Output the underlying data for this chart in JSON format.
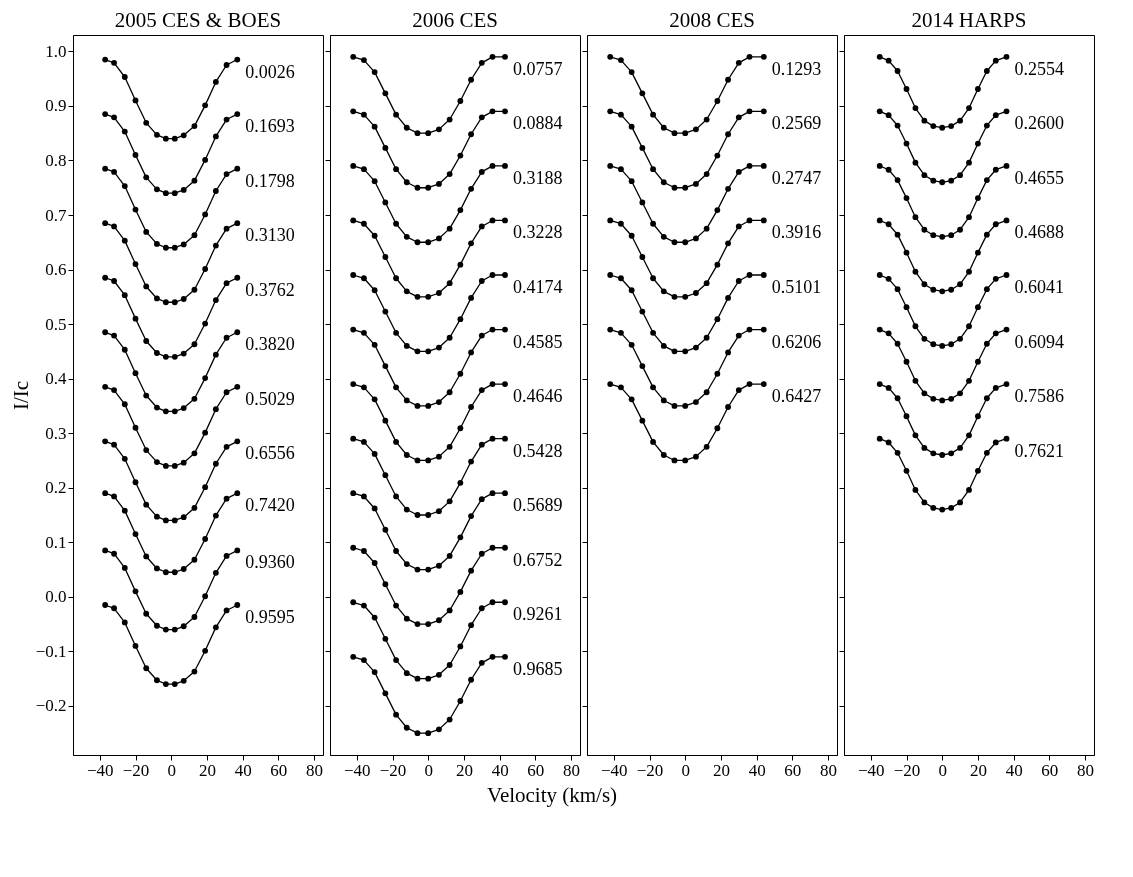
{
  "chart_data": [
    {
      "type": "line",
      "title": "2005 CES & BOES",
      "ylabel": "I/Ic",
      "xlim": [
        -55,
        85
      ],
      "ylim": [
        -0.29,
        1.03
      ],
      "xticks": [
        -40,
        -20,
        0,
        20,
        40,
        60,
        80
      ],
      "yticks": [
        -0.2,
        -0.1,
        {
          "value": 0,
          "label": "0.0"
        },
        0.1,
        0.2,
        0.3,
        0.4,
        0.5,
        0.6,
        0.7,
        0.8,
        0.9,
        {
          "value": 1,
          "label": "1.0"
        }
      ],
      "marker": "circle",
      "line_style": "solid",
      "x": [
        -37,
        -32,
        -26,
        -20,
        -14,
        -8,
        -3,
        2,
        7,
        13,
        19,
        25,
        31,
        37
      ],
      "series": [
        {
          "name": "0.0026",
          "color": "#000000",
          "values": [
            0.985,
            0.979,
            0.953,
            0.91,
            0.869,
            0.847,
            0.84,
            0.84,
            0.846,
            0.863,
            0.901,
            0.944,
            0.975,
            0.985
          ]
        },
        {
          "name": "0.1693",
          "color": "#000000",
          "values": [
            0.885,
            0.879,
            0.853,
            0.81,
            0.769,
            0.747,
            0.74,
            0.74,
            0.746,
            0.763,
            0.801,
            0.844,
            0.875,
            0.885
          ]
        },
        {
          "name": "0.1798",
          "color": "#000000",
          "values": [
            0.785,
            0.779,
            0.753,
            0.71,
            0.669,
            0.647,
            0.64,
            0.64,
            0.646,
            0.663,
            0.701,
            0.744,
            0.775,
            0.785
          ]
        },
        {
          "name": "0.3130",
          "color": "#000000",
          "values": [
            0.685,
            0.679,
            0.653,
            0.61,
            0.569,
            0.547,
            0.54,
            0.54,
            0.546,
            0.563,
            0.601,
            0.644,
            0.675,
            0.685
          ]
        },
        {
          "name": "0.3762",
          "color": "#000000",
          "values": [
            0.585,
            0.579,
            0.553,
            0.51,
            0.469,
            0.447,
            0.44,
            0.44,
            0.446,
            0.463,
            0.501,
            0.544,
            0.575,
            0.585
          ]
        },
        {
          "name": "0.3820",
          "color": "#000000",
          "values": [
            0.485,
            0.479,
            0.453,
            0.41,
            0.369,
            0.347,
            0.34,
            0.34,
            0.346,
            0.363,
            0.401,
            0.444,
            0.475,
            0.485
          ]
        },
        {
          "name": "0.5029",
          "color": "#000000",
          "values": [
            0.385,
            0.379,
            0.353,
            0.31,
            0.269,
            0.247,
            0.24,
            0.24,
            0.246,
            0.263,
            0.301,
            0.344,
            0.375,
            0.385
          ]
        },
        {
          "name": "0.6556",
          "color": "#000000",
          "values": [
            0.285,
            0.279,
            0.253,
            0.21,
            0.169,
            0.147,
            0.14,
            0.14,
            0.146,
            0.163,
            0.201,
            0.244,
            0.275,
            0.285
          ]
        },
        {
          "name": "0.7420",
          "color": "#000000",
          "values": [
            0.19,
            0.184,
            0.158,
            0.115,
            0.074,
            0.052,
            0.045,
            0.045,
            0.051,
            0.068,
            0.106,
            0.149,
            0.18,
            0.19
          ]
        },
        {
          "name": "0.9360",
          "color": "#000000",
          "values": [
            0.085,
            0.079,
            0.053,
            0.01,
            -0.031,
            -0.053,
            -0.06,
            -0.06,
            -0.054,
            -0.037,
            0.001,
            0.044,
            0.075,
            0.085
          ]
        },
        {
          "name": "0.9595",
          "color": "#000000",
          "values": [
            -0.015,
            -0.021,
            -0.047,
            -0.09,
            -0.131,
            -0.153,
            -0.16,
            -0.16,
            -0.154,
            -0.137,
            -0.099,
            -0.056,
            -0.025,
            -0.015
          ]
        }
      ]
    },
    {
      "type": "line",
      "title": "2006 CES",
      "xlabel": "Velocity (km/s)",
      "tick_labels": "x",
      "xlim": [
        -55,
        85
      ],
      "ylim": [
        -0.29,
        1.03
      ],
      "xticks": [
        -40,
        -20,
        0,
        20,
        40,
        60,
        80
      ],
      "yticks": [
        -0.2,
        -0.1,
        0.0,
        0.1,
        0.2,
        0.3,
        0.4,
        0.5,
        0.6,
        0.7,
        0.8,
        0.9,
        1.0
      ],
      "marker": "circle",
      "line_style": "solid",
      "x": [
        -42,
        -36,
        -30,
        -24,
        -18,
        -12,
        -6,
        0,
        6,
        12,
        18,
        24,
        30,
        36,
        43
      ],
      "series": [
        {
          "name": "0.0757",
          "color": "#000000",
          "values": [
            0.99,
            0.984,
            0.962,
            0.923,
            0.884,
            0.86,
            0.85,
            0.85,
            0.857,
            0.875,
            0.909,
            0.948,
            0.979,
            0.99,
            0.99
          ]
        },
        {
          "name": "0.0884",
          "color": "#000000",
          "values": [
            0.89,
            0.884,
            0.862,
            0.823,
            0.784,
            0.76,
            0.75,
            0.75,
            0.757,
            0.775,
            0.809,
            0.848,
            0.879,
            0.89,
            0.89
          ]
        },
        {
          "name": "0.3188",
          "color": "#000000",
          "values": [
            0.79,
            0.784,
            0.762,
            0.723,
            0.684,
            0.66,
            0.65,
            0.65,
            0.657,
            0.675,
            0.709,
            0.748,
            0.779,
            0.79,
            0.79
          ]
        },
        {
          "name": "0.3228",
          "color": "#000000",
          "values": [
            0.69,
            0.684,
            0.662,
            0.623,
            0.584,
            0.56,
            0.55,
            0.55,
            0.557,
            0.575,
            0.609,
            0.648,
            0.679,
            0.69,
            0.69
          ]
        },
        {
          "name": "0.4174",
          "color": "#000000",
          "values": [
            0.59,
            0.584,
            0.562,
            0.523,
            0.484,
            0.46,
            0.45,
            0.45,
            0.457,
            0.475,
            0.509,
            0.548,
            0.579,
            0.59,
            0.59
          ]
        },
        {
          "name": "0.4585",
          "color": "#000000",
          "values": [
            0.49,
            0.484,
            0.462,
            0.423,
            0.384,
            0.36,
            0.35,
            0.35,
            0.357,
            0.375,
            0.409,
            0.448,
            0.479,
            0.49,
            0.49
          ]
        },
        {
          "name": "0.4646",
          "color": "#000000",
          "values": [
            0.39,
            0.384,
            0.362,
            0.323,
            0.284,
            0.26,
            0.25,
            0.25,
            0.257,
            0.275,
            0.309,
            0.348,
            0.379,
            0.39,
            0.39
          ]
        },
        {
          "name": "0.5428",
          "color": "#000000",
          "values": [
            0.29,
            0.284,
            0.262,
            0.223,
            0.184,
            0.16,
            0.15,
            0.15,
            0.157,
            0.175,
            0.209,
            0.248,
            0.279,
            0.29,
            0.29
          ]
        },
        {
          "name": "0.5689",
          "color": "#000000",
          "values": [
            0.19,
            0.184,
            0.162,
            0.123,
            0.084,
            0.06,
            0.05,
            0.05,
            0.057,
            0.075,
            0.109,
            0.148,
            0.179,
            0.19,
            0.19
          ]
        },
        {
          "name": "0.6752",
          "color": "#000000",
          "values": [
            0.09,
            0.084,
            0.062,
            0.023,
            -0.016,
            -0.04,
            -0.05,
            -0.05,
            -0.043,
            -0.025,
            0.009,
            0.048,
            0.079,
            0.09,
            0.09
          ]
        },
        {
          "name": "0.9261",
          "color": "#000000",
          "values": [
            -0.01,
            -0.016,
            -0.038,
            -0.077,
            -0.116,
            -0.14,
            -0.15,
            -0.15,
            -0.143,
            -0.125,
            -0.091,
            -0.052,
            -0.021,
            -0.01,
            -0.01
          ]
        },
        {
          "name": "0.9685",
          "color": "#000000",
          "values": [
            -0.11,
            -0.116,
            -0.138,
            -0.177,
            -0.216,
            -0.24,
            -0.25,
            -0.25,
            -0.243,
            -0.225,
            -0.191,
            -0.152,
            -0.121,
            -0.11,
            -0.11
          ]
        }
      ]
    },
    {
      "type": "line",
      "title": "2008 CES",
      "tick_labels": "x",
      "xlim": [
        -55,
        85
      ],
      "ylim": [
        -0.29,
        1.03
      ],
      "xticks": [
        -40,
        -20,
        0,
        20,
        40,
        60,
        80
      ],
      "yticks": [
        -0.2,
        -0.1,
        0.0,
        0.1,
        0.2,
        0.3,
        0.4,
        0.5,
        0.6,
        0.7,
        0.8,
        0.9,
        1.0
      ],
      "marker": "circle",
      "line_style": "solid",
      "x": [
        -42,
        -36,
        -30,
        -24,
        -18,
        -12,
        -6,
        0,
        6,
        12,
        18,
        24,
        30,
        36,
        44
      ],
      "series": [
        {
          "name": "0.1293",
          "color": "#000000",
          "values": [
            0.99,
            0.984,
            0.962,
            0.923,
            0.884,
            0.86,
            0.85,
            0.85,
            0.857,
            0.875,
            0.909,
            0.948,
            0.979,
            0.99,
            0.99
          ]
        },
        {
          "name": "0.2569",
          "color": "#000000",
          "values": [
            0.89,
            0.884,
            0.862,
            0.823,
            0.784,
            0.76,
            0.75,
            0.75,
            0.757,
            0.775,
            0.809,
            0.848,
            0.879,
            0.89,
            0.89
          ]
        },
        {
          "name": "0.2747",
          "color": "#000000",
          "values": [
            0.79,
            0.784,
            0.762,
            0.723,
            0.684,
            0.66,
            0.65,
            0.65,
            0.657,
            0.675,
            0.709,
            0.748,
            0.779,
            0.79,
            0.79
          ]
        },
        {
          "name": "0.3916",
          "color": "#000000",
          "values": [
            0.69,
            0.684,
            0.662,
            0.623,
            0.584,
            0.56,
            0.55,
            0.55,
            0.557,
            0.575,
            0.609,
            0.648,
            0.679,
            0.69,
            0.69
          ]
        },
        {
          "name": "0.5101",
          "color": "#000000",
          "values": [
            0.59,
            0.584,
            0.562,
            0.523,
            0.484,
            0.46,
            0.45,
            0.45,
            0.457,
            0.475,
            0.509,
            0.548,
            0.579,
            0.59,
            0.59
          ]
        },
        {
          "name": "0.6206",
          "color": "#000000",
          "values": [
            0.49,
            0.484,
            0.462,
            0.423,
            0.384,
            0.36,
            0.35,
            0.35,
            0.357,
            0.375,
            0.409,
            0.448,
            0.479,
            0.49,
            0.49
          ]
        },
        {
          "name": "0.6427",
          "color": "#000000",
          "values": [
            0.39,
            0.384,
            0.362,
            0.323,
            0.284,
            0.26,
            0.25,
            0.25,
            0.257,
            0.275,
            0.309,
            0.348,
            0.379,
            0.39,
            0.39
          ]
        }
      ]
    },
    {
      "type": "line",
      "title": "2014 HARPS",
      "tick_labels": "x",
      "xlim": [
        -55,
        85
      ],
      "ylim": [
        -0.29,
        1.03
      ],
      "xticks": [
        -40,
        -20,
        0,
        20,
        40,
        60,
        80
      ],
      "yticks": [
        -0.2,
        -0.1,
        0.0,
        0.1,
        0.2,
        0.3,
        0.4,
        0.5,
        0.6,
        0.7,
        0.8,
        0.9,
        1.0
      ],
      "marker": "circle",
      "line_style": "solid",
      "x": [
        -35,
        -30,
        -25,
        -20,
        -15,
        -10,
        -5,
        0,
        5,
        10,
        15,
        20,
        25,
        30,
        36
      ],
      "series": [
        {
          "name": "0.2554",
          "color": "#000000",
          "values": [
            0.99,
            0.983,
            0.964,
            0.931,
            0.896,
            0.873,
            0.863,
            0.86,
            0.863,
            0.873,
            0.896,
            0.931,
            0.964,
            0.983,
            0.99
          ]
        },
        {
          "name": "0.2600",
          "color": "#000000",
          "values": [
            0.89,
            0.883,
            0.864,
            0.831,
            0.796,
            0.773,
            0.763,
            0.76,
            0.763,
            0.773,
            0.796,
            0.831,
            0.864,
            0.883,
            0.89
          ]
        },
        {
          "name": "0.4655",
          "color": "#000000",
          "values": [
            0.79,
            0.783,
            0.764,
            0.731,
            0.696,
            0.673,
            0.663,
            0.66,
            0.663,
            0.673,
            0.696,
            0.731,
            0.764,
            0.783,
            0.79
          ]
        },
        {
          "name": "0.4688",
          "color": "#000000",
          "values": [
            0.69,
            0.683,
            0.664,
            0.631,
            0.596,
            0.573,
            0.563,
            0.56,
            0.563,
            0.573,
            0.596,
            0.631,
            0.664,
            0.683,
            0.69
          ]
        },
        {
          "name": "0.6041",
          "color": "#000000",
          "values": [
            0.59,
            0.583,
            0.564,
            0.531,
            0.496,
            0.473,
            0.463,
            0.46,
            0.463,
            0.473,
            0.496,
            0.531,
            0.564,
            0.583,
            0.59
          ]
        },
        {
          "name": "0.6094",
          "color": "#000000",
          "values": [
            0.49,
            0.483,
            0.464,
            0.431,
            0.396,
            0.373,
            0.363,
            0.36,
            0.363,
            0.373,
            0.396,
            0.431,
            0.464,
            0.483,
            0.49
          ]
        },
        {
          "name": "0.7586",
          "color": "#000000",
          "values": [
            0.39,
            0.383,
            0.364,
            0.331,
            0.296,
            0.273,
            0.263,
            0.26,
            0.263,
            0.273,
            0.296,
            0.331,
            0.364,
            0.383,
            0.39
          ]
        },
        {
          "name": "0.7621",
          "color": "#000000",
          "values": [
            0.29,
            0.283,
            0.264,
            0.231,
            0.196,
            0.173,
            0.163,
            0.16,
            0.163,
            0.173,
            0.196,
            0.231,
            0.264,
            0.283,
            0.29
          ]
        }
      ]
    }
  ]
}
